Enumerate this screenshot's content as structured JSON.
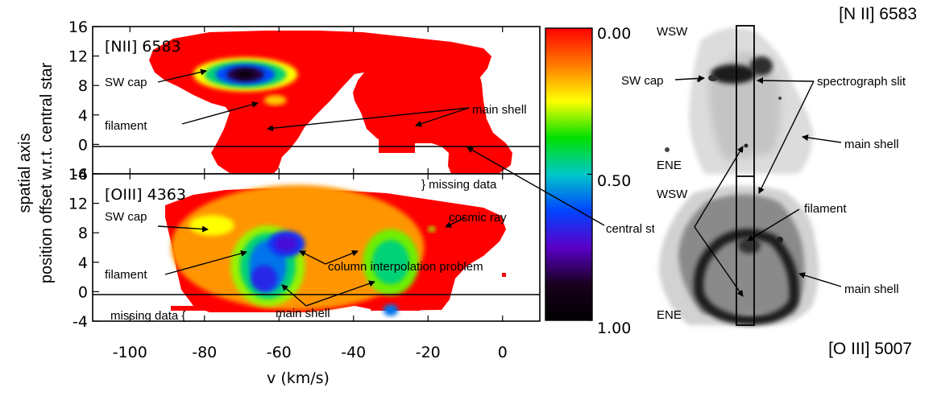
{
  "chart_data": {
    "type": "heatmap",
    "xlabel": "v (km/s)",
    "ylabel_lines": [
      "spatial axis",
      "position offset w.r.t. central star"
    ],
    "x_ticks": [
      "-100",
      "-80",
      "-60",
      "-40",
      "-20",
      "0"
    ],
    "x_tick_values": [
      -100,
      -80,
      -60,
      -40,
      -20,
      0
    ],
    "xlim": [
      -110,
      10
    ],
    "y_ticks": [
      "16",
      "12",
      "8",
      "4",
      "0",
      "-4"
    ],
    "y_tick_values": [
      16,
      12,
      8,
      4,
      0,
      -4
    ],
    "ylim": [
      -4,
      16
    ],
    "colorbar": {
      "ticks": [
        "0.00",
        "0.50",
        "1.00"
      ],
      "tick_values": [
        0.0,
        0.5,
        1.0
      ],
      "colors": [
        "#ff0000",
        "#ff7a00",
        "#ffff00",
        "#00e000",
        "#00c8c8",
        "#0044ff",
        "#5a00c8",
        "#1a0020",
        "#000000"
      ]
    },
    "panels": [
      {
        "title": "[NII] 6583",
        "blobs": [
          {
            "v": -69,
            "y": 9.5,
            "rv": 14,
            "ry": 2.3,
            "level": 0.25
          },
          {
            "v": -69,
            "y": 9.5,
            "rv": 11,
            "ry": 1.8,
            "level": 0.45
          },
          {
            "v": -69,
            "y": 9.5,
            "rv": 8,
            "ry": 1.4,
            "level": 0.62
          },
          {
            "v": -69,
            "y": 9.5,
            "rv": 5,
            "ry": 1.0,
            "level": 0.85
          },
          {
            "v": -69,
            "y": 9.5,
            "rv": 2.5,
            "ry": 0.6,
            "level": 0.95
          },
          {
            "v": -61,
            "y": 6.0,
            "rv": 3,
            "ry": 0.7,
            "level": 0.2
          }
        ]
      },
      {
        "title": "[OIII] 4363",
        "blobs": [
          {
            "v": -55,
            "y": 6,
            "rv": 34,
            "ry": 8.5,
            "level": 0.15
          },
          {
            "v": -78,
            "y": 9,
            "rv": 6,
            "ry": 1.4,
            "level": 0.25
          },
          {
            "v": -63,
            "y": 3.5,
            "rv": 10,
            "ry": 5.5,
            "level": 0.3
          },
          {
            "v": -63,
            "y": 3.5,
            "rv": 7.5,
            "ry": 4.5,
            "level": 0.45
          },
          {
            "v": -63,
            "y": 3.5,
            "rv": 5,
            "ry": 3.5,
            "level": 0.58
          },
          {
            "v": -58,
            "y": 6.5,
            "rv": 5,
            "ry": 1.8,
            "level": 0.65
          },
          {
            "v": -58,
            "y": 6.5,
            "rv": 3,
            "ry": 1.1,
            "level": 0.72
          },
          {
            "v": -64,
            "y": 1.8,
            "rv": 3.5,
            "ry": 1.8,
            "level": 0.68
          },
          {
            "v": -30,
            "y": 4,
            "rv": 7.5,
            "ry": 4.5,
            "level": 0.32
          },
          {
            "v": -30,
            "y": 4,
            "rv": 5,
            "ry": 3.0,
            "level": 0.45
          },
          {
            "v": -30,
            "y": -2.5,
            "rv": 2,
            "ry": 0.8,
            "level": 0.58
          },
          {
            "v": -19,
            "y": 8.5,
            "rv": 1,
            "ry": 0.4,
            "level": 0.3
          }
        ]
      }
    ]
  },
  "annotations": {
    "top": {
      "sw_cap": "SW cap",
      "filament": "filament",
      "main_shell": "main shell"
    },
    "bottom": {
      "sw_cap": "SW cap",
      "filament": "filament",
      "column_interp": "column interpolation problem",
      "main_shell": "main shell",
      "cosmic_ray": "cosmic ray",
      "missing_data_right": "} missing data",
      "missing_data_left": "missing data {"
    },
    "central_star": "central star"
  },
  "images": {
    "top_title": "[N II] 6583",
    "bottom_title": "[O III] 5007",
    "top": {
      "wsw": "WSW",
      "ene": "ENE",
      "sw_cap": "SW cap",
      "slit": "spectrograph slit",
      "main_shell": "main shell"
    },
    "bottom": {
      "wsw": "WSW",
      "ene": "ENE",
      "filament": "filament",
      "main_shell": "main shell"
    }
  }
}
